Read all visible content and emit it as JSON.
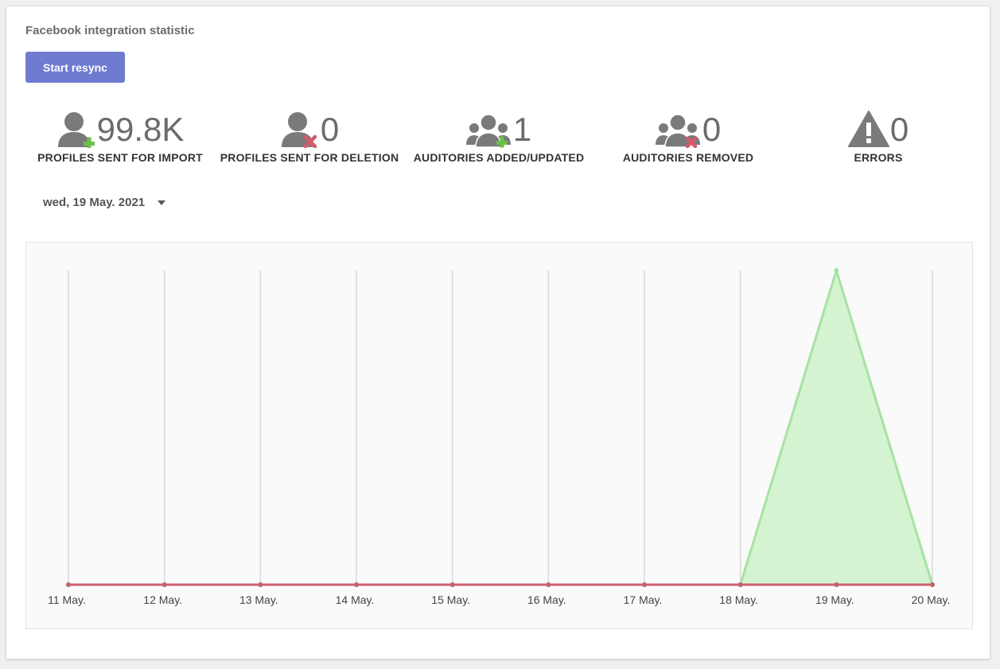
{
  "title": "Facebook integration statistic",
  "resync_label": "Start resync",
  "stats": [
    {
      "icon": "user-add-icon",
      "value": "99.8K",
      "label": "PROFILES SENT FOR IMPORT"
    },
    {
      "icon": "user-remove-icon",
      "value": "0",
      "label": "PROFILES SENT FOR DELETION"
    },
    {
      "icon": "users-add-icon",
      "value": "1",
      "label": "AUDITORIES ADDED/UPDATED"
    },
    {
      "icon": "users-remove-icon",
      "value": "0",
      "label": "AUDITORIES REMOVED"
    },
    {
      "icon": "warning-icon",
      "value": "0",
      "label": "ERRORS"
    }
  ],
  "date_select": {
    "value": "wed, 19 May. 2021",
    "icon": "caret-down-icon"
  },
  "colors": {
    "accent": "#6f7bd1",
    "icon_gray": "#7a7a7a",
    "plus_green": "#6cc04a",
    "cross_red": "#d45b6a",
    "series_green": "#a6e3a1",
    "series_green_fill": "#d4f3d1",
    "series_red": "#c9606e"
  },
  "chart_data": {
    "type": "area",
    "categories": [
      "11 May.",
      "12 May.",
      "13 May.",
      "14 May.",
      "15 May.",
      "16 May.",
      "17 May.",
      "18 May.",
      "19 May.",
      "20 May."
    ],
    "series": [
      {
        "color": "#a6e3a1",
        "values": [
          0,
          0,
          0,
          0,
          0,
          0,
          0,
          0,
          1,
          0
        ]
      },
      {
        "color": "#c9606e",
        "values": [
          0,
          0,
          0,
          0,
          0,
          0,
          0,
          0,
          0,
          0
        ]
      }
    ],
    "ylim": [
      0,
      1
    ],
    "grid": "vertical"
  }
}
